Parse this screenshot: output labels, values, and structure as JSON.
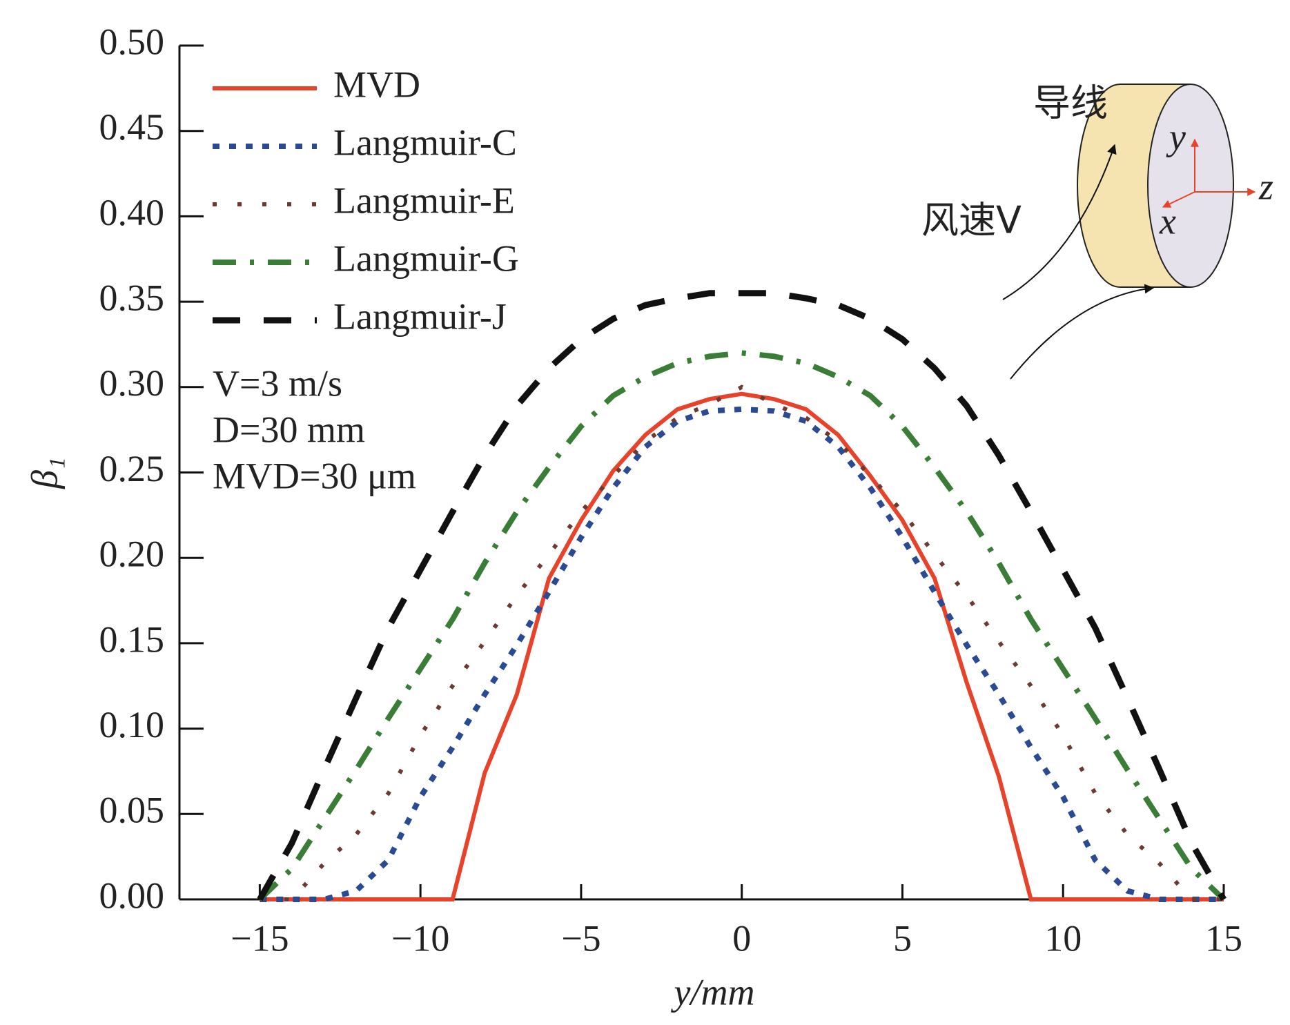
{
  "chart_data": {
    "type": "line",
    "x_label": "y/mm",
    "y_label": "β₁",
    "x": [
      -15,
      -14,
      -13,
      -12,
      -11,
      -10,
      -9,
      -8,
      -7,
      -6,
      -5,
      -4,
      -3,
      -2,
      -1,
      0,
      1,
      2,
      3,
      4,
      5,
      6,
      7,
      8,
      9,
      10,
      11,
      12,
      13,
      14,
      15
    ],
    "series": [
      {
        "name": "MVD",
        "color": "#e8432a",
        "style": "solid",
        "values": [
          0,
          0,
          0,
          0,
          0,
          0,
          0,
          0.074,
          0.12,
          0.188,
          0.222,
          0.251,
          0.272,
          0.287,
          0.293,
          0.296,
          0.293,
          0.287,
          0.272,
          0.248,
          0.222,
          0.188,
          0.127,
          0.072,
          0,
          0,
          0,
          0,
          0,
          0,
          0
        ]
      },
      {
        "name": "Langmuir-C",
        "color": "#2b4a94",
        "style": "dotted",
        "values": [
          0,
          0,
          0,
          0.005,
          0.023,
          0.06,
          0.089,
          0.12,
          0.149,
          0.18,
          0.212,
          0.241,
          0.265,
          0.28,
          0.286,
          0.287,
          0.286,
          0.28,
          0.265,
          0.241,
          0.212,
          0.18,
          0.149,
          0.12,
          0.089,
          0.06,
          0.023,
          0.005,
          0,
          0,
          0
        ]
      },
      {
        "name": "Langmuir-E",
        "color": "#6b3a32",
        "style": "dotted-sparse",
        "values": [
          0,
          0,
          0.021,
          0.038,
          0.062,
          0.096,
          0.125,
          0.151,
          0.178,
          0.202,
          0.227,
          0.248,
          0.268,
          0.282,
          0.29,
          0.3,
          0.29,
          0.282,
          0.268,
          0.248,
          0.227,
          0.202,
          0.178,
          0.151,
          0.125,
          0.096,
          0.062,
          0.038,
          0.021,
          0,
          0
        ]
      },
      {
        "name": "Langmuir-G",
        "color": "#3a7d36",
        "style": "dash-dot",
        "values": [
          0,
          0.018,
          0.047,
          0.076,
          0.106,
          0.135,
          0.164,
          0.197,
          0.227,
          0.253,
          0.277,
          0.295,
          0.306,
          0.314,
          0.318,
          0.32,
          0.318,
          0.314,
          0.306,
          0.295,
          0.277,
          0.253,
          0.227,
          0.197,
          0.164,
          0.135,
          0.106,
          0.076,
          0.047,
          0.018,
          0
        ]
      },
      {
        "name": "Langmuir-J",
        "color": "#111111",
        "style": "dashed",
        "values": [
          0,
          0.033,
          0.076,
          0.118,
          0.159,
          0.193,
          0.227,
          0.26,
          0.289,
          0.311,
          0.328,
          0.34,
          0.348,
          0.352,
          0.355,
          0.355,
          0.355,
          0.352,
          0.348,
          0.34,
          0.328,
          0.311,
          0.289,
          0.26,
          0.227,
          0.193,
          0.159,
          0.118,
          0.076,
          0.033,
          0
        ]
      }
    ],
    "xlim": [
      -17.5,
      15
    ],
    "xticks": [
      {
        "value": -15,
        "label": "−15"
      },
      {
        "value": -10,
        "label": "−10"
      },
      {
        "value": -5,
        "label": "−5"
      },
      0,
      5,
      10,
      15
    ],
    "ylim": [
      0,
      0.5
    ],
    "yticks": [
      {
        "value": 0,
        "label": "0.00"
      },
      {
        "value": 0.05,
        "label": "0.05"
      },
      {
        "value": 0.1,
        "label": "0.10"
      },
      {
        "value": 0.15,
        "label": "0.15"
      },
      {
        "value": 0.2,
        "label": "0.20"
      },
      {
        "value": 0.25,
        "label": "0.25"
      },
      {
        "value": 0.3,
        "label": "0.30"
      },
      {
        "value": 0.35,
        "label": "0.35"
      },
      {
        "value": 0.4,
        "label": "0.40"
      },
      {
        "value": 0.45,
        "label": "0.45"
      },
      {
        "value": 0.5,
        "label": "0.50"
      }
    ],
    "legend": "upper left",
    "annotations": [
      "V=3 m/s",
      "D=30 mm",
      "MVD=30 μm"
    ],
    "inset_labels": {
      "wire": "导线",
      "wind": "风速V",
      "y_axis": "y",
      "z_axis": "z",
      "x_axis": "x"
    }
  }
}
